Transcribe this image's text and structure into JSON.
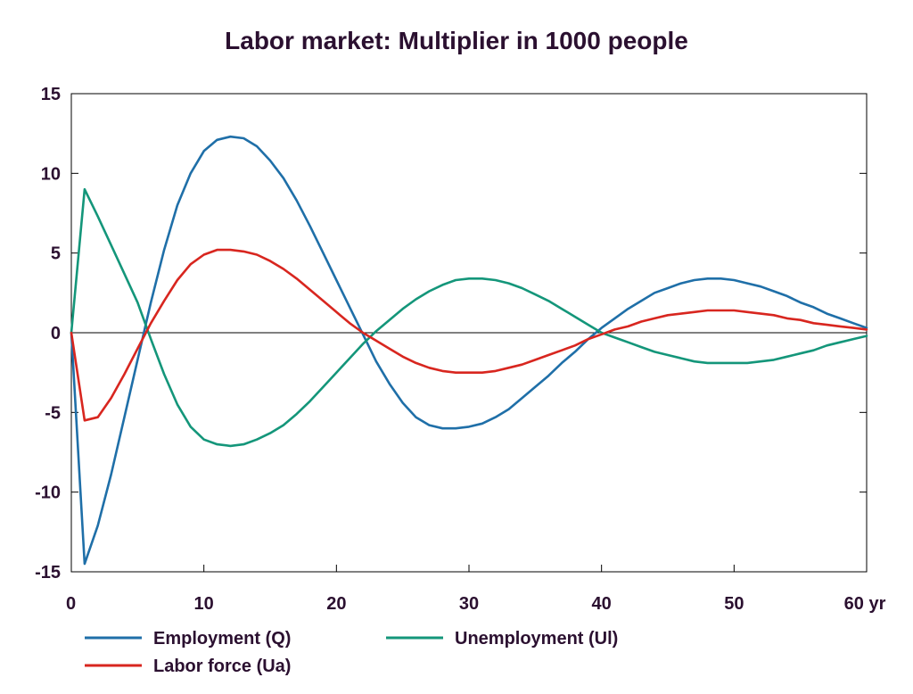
{
  "chart_data": {
    "type": "line",
    "title": "Labor market: Multiplier in 1000 people",
    "x_unit_label": "yr",
    "xlim": [
      0,
      60
    ],
    "ylim": [
      -15,
      15
    ],
    "x_ticks": [
      0,
      10,
      20,
      30,
      40,
      50,
      60
    ],
    "x_tick_labels": [
      "0",
      "10",
      "20",
      "30",
      "40",
      "50",
      "60 yr"
    ],
    "y_ticks": [
      15,
      10,
      5,
      0,
      -5,
      -10,
      -15
    ],
    "y_tick_labels": [
      "15",
      "10",
      "5",
      "0",
      "-5",
      "-10",
      "-15"
    ],
    "grid": false,
    "legend_position": "bottom",
    "x": [
      0,
      1,
      2,
      3,
      4,
      5,
      6,
      7,
      8,
      9,
      10,
      11,
      12,
      13,
      14,
      15,
      16,
      17,
      18,
      19,
      20,
      21,
      22,
      23,
      24,
      25,
      26,
      27,
      28,
      29,
      30,
      31,
      32,
      33,
      34,
      35,
      36,
      37,
      38,
      39,
      40,
      41,
      42,
      43,
      44,
      45,
      46,
      47,
      48,
      49,
      50,
      51,
      52,
      53,
      54,
      55,
      56,
      57,
      58,
      59,
      60
    ],
    "series": [
      {
        "name": "Employment (Q)",
        "color": "#1f6fa8",
        "values": [
          0,
          -14.5,
          -12.1,
          -8.9,
          -5.3,
          -1.7,
          1.9,
          5.2,
          8.0,
          10.0,
          11.4,
          12.1,
          12.3,
          12.2,
          11.7,
          10.8,
          9.7,
          8.3,
          6.7,
          5.0,
          3.3,
          1.6,
          -0.1,
          -1.8,
          -3.2,
          -4.4,
          -5.3,
          -5.8,
          -6.0,
          -6.0,
          -5.9,
          -5.7,
          -5.3,
          -4.8,
          -4.1,
          -3.4,
          -2.7,
          -1.9,
          -1.2,
          -0.4,
          0.3,
          0.9,
          1.5,
          2.0,
          2.5,
          2.8,
          3.1,
          3.3,
          3.4,
          3.4,
          3.3,
          3.1,
          2.9,
          2.6,
          2.3,
          1.9,
          1.6,
          1.2,
          0.9,
          0.6,
          0.3
        ]
      },
      {
        "name": "Unemployment (Ul)",
        "color": "#14967a",
        "values": [
          0,
          9.0,
          7.3,
          5.5,
          3.7,
          1.9,
          -0.4,
          -2.6,
          -4.5,
          -5.9,
          -6.7,
          -7.0,
          -7.1,
          -7.0,
          -6.7,
          -6.3,
          -5.8,
          -5.1,
          -4.3,
          -3.4,
          -2.5,
          -1.6,
          -0.7,
          0.1,
          0.8,
          1.5,
          2.1,
          2.6,
          3.0,
          3.3,
          3.4,
          3.4,
          3.3,
          3.1,
          2.8,
          2.4,
          2.0,
          1.5,
          1.0,
          0.5,
          0.0,
          -0.3,
          -0.6,
          -0.9,
          -1.2,
          -1.4,
          -1.6,
          -1.8,
          -1.9,
          -1.9,
          -1.9,
          -1.9,
          -1.8,
          -1.7,
          -1.5,
          -1.3,
          -1.1,
          -0.8,
          -0.6,
          -0.4,
          -0.2
        ]
      },
      {
        "name": "Labor force (Ua)",
        "color": "#d8261f",
        "values": [
          0,
          -5.5,
          -5.3,
          -4.1,
          -2.6,
          -1.0,
          0.6,
          2.0,
          3.3,
          4.3,
          4.9,
          5.2,
          5.2,
          5.1,
          4.9,
          4.5,
          4.0,
          3.4,
          2.7,
          2.0,
          1.3,
          0.6,
          0.0,
          -0.5,
          -1.0,
          -1.5,
          -1.9,
          -2.2,
          -2.4,
          -2.5,
          -2.5,
          -2.5,
          -2.4,
          -2.2,
          -2.0,
          -1.7,
          -1.4,
          -1.1,
          -0.8,
          -0.4,
          -0.1,
          0.2,
          0.4,
          0.7,
          0.9,
          1.1,
          1.2,
          1.3,
          1.4,
          1.4,
          1.4,
          1.3,
          1.2,
          1.1,
          0.9,
          0.8,
          0.6,
          0.5,
          0.4,
          0.3,
          0.2
        ]
      }
    ]
  }
}
